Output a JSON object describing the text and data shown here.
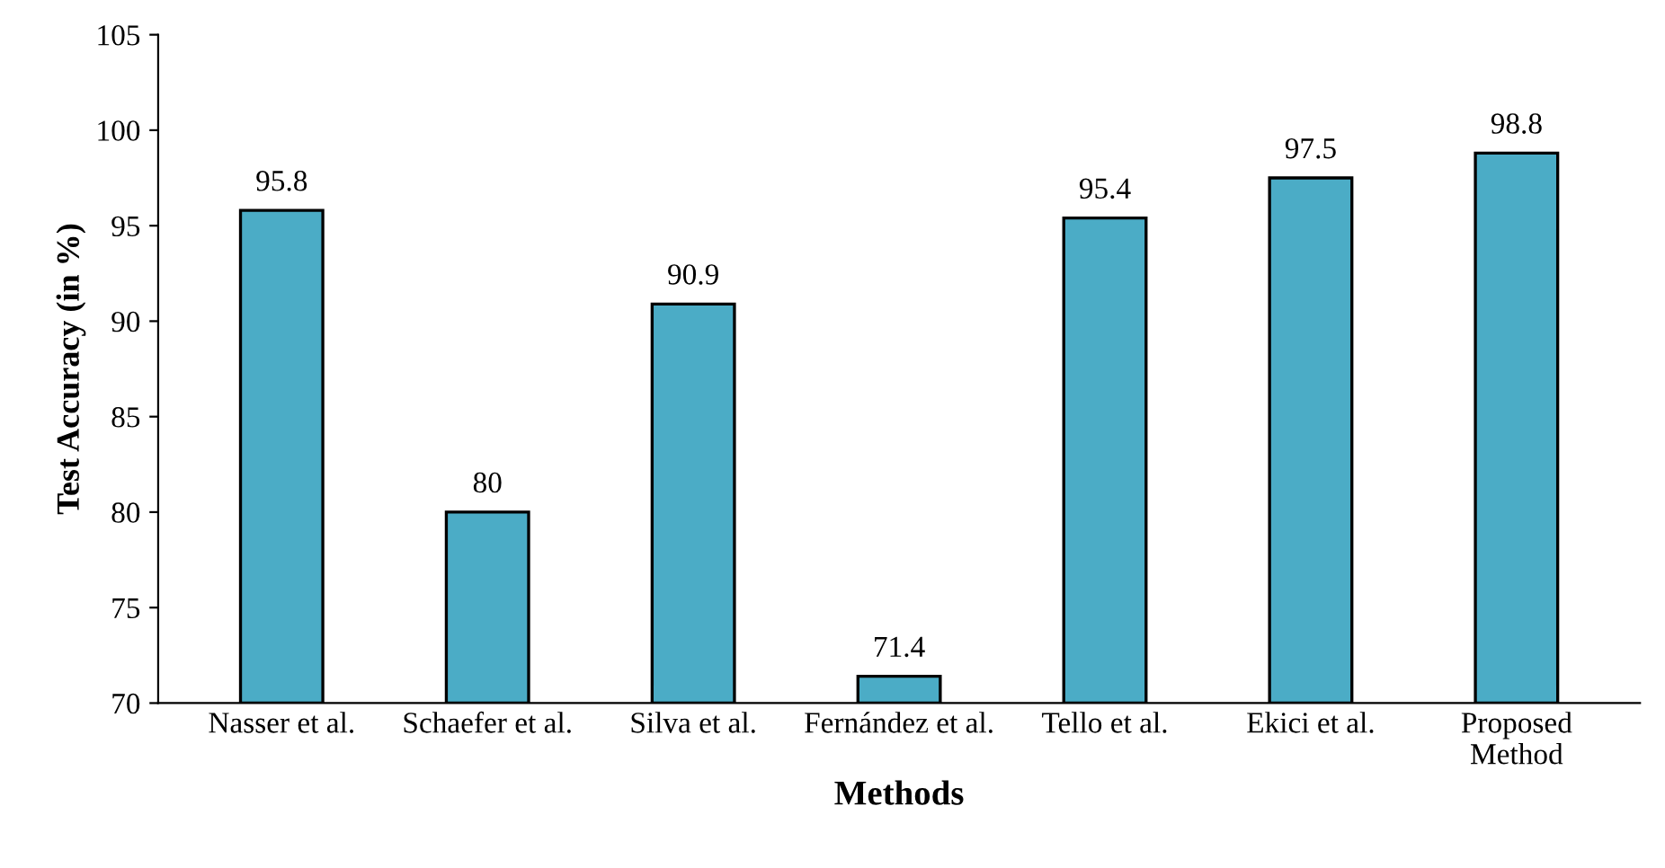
{
  "chart_data": {
    "type": "bar",
    "xlabel": "Methods",
    "ylabel": "Test Accuracy (in %)",
    "categories": [
      "Nasser et al.",
      "Schaefer et al.",
      "Silva et al.",
      "Fernández et al.",
      "Tello et al.",
      "Ekici et al.",
      "Proposed\nMethod"
    ],
    "values": [
      95.8,
      80,
      90.9,
      71.4,
      95.4,
      97.5,
      98.8
    ],
    "color": "#4bacc6",
    "ylim": [
      70,
      105
    ],
    "yticks": [
      70,
      75,
      80,
      85,
      90,
      95,
      100,
      105
    ],
    "grid": false,
    "data_labels": true
  }
}
